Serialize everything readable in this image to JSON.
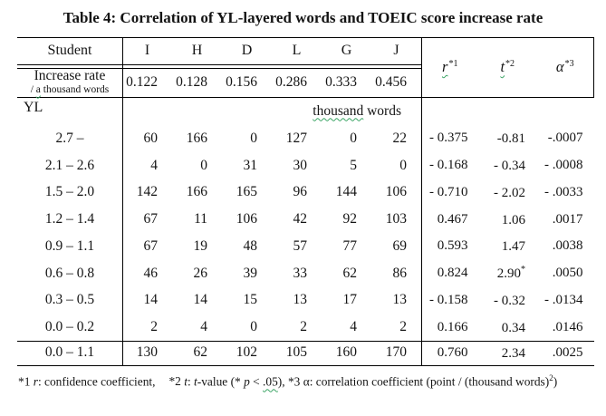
{
  "title": "Table 4: Correlation of YL-layered words and TOEIC score increase rate",
  "header": {
    "student_label": "Student",
    "students": [
      "I",
      "H",
      "D",
      "L",
      "G",
      "J"
    ],
    "increase_label": "Increase rate",
    "increase_sub_pre": "/ ",
    "increase_sub_squig": "a",
    "increase_sub_post": " thousand words",
    "increase_values": [
      "0.122",
      "0.128",
      "0.156",
      "0.286",
      "0.333",
      "0.456"
    ],
    "stats": [
      {
        "symbol": "r",
        "sup": "*1",
        "squiggle": true,
        "name": "stat-header-r"
      },
      {
        "symbol": "t",
        "sup": "*2",
        "squiggle": true,
        "name": "stat-header-t"
      },
      {
        "symbol": "α",
        "sup": "*3",
        "squiggle": false,
        "name": "stat-header-alpha"
      }
    ]
  },
  "yl": {
    "label": "YL",
    "unit_squig": "thousand",
    "unit_post": " words",
    "rows": [
      {
        "range": "2.7 –",
        "values": [
          "60",
          "166",
          "0",
          "127",
          "0",
          "22"
        ],
        "r": "- 0.375",
        "t": "-0.81",
        "t_sup": "",
        "a": "-.0007"
      },
      {
        "range": "2.1 – 2.6",
        "values": [
          "4",
          "0",
          "31",
          "30",
          "5",
          "0"
        ],
        "r": "- 0.168",
        "t": "- 0.34",
        "t_sup": "",
        "a": "- .0008"
      },
      {
        "range": "1.5 – 2.0",
        "values": [
          "142",
          "166",
          "165",
          "96",
          "144",
          "106"
        ],
        "r": "- 0.710",
        "t": "- 2.02",
        "t_sup": "",
        "a": "- .0033"
      },
      {
        "range": "1.2 – 1.4",
        "values": [
          "67",
          "11",
          "106",
          "42",
          "92",
          "103"
        ],
        "r": "0.467",
        "t": "1.06",
        "t_sup": "",
        "a": ".0017"
      },
      {
        "range": "0.9 – 1.1",
        "values": [
          "67",
          "19",
          "48",
          "57",
          "77",
          "69"
        ],
        "r": "0.593",
        "t": "1.47",
        "t_sup": "",
        "a": ".0038"
      },
      {
        "range": "0.6 – 0.8",
        "values": [
          "46",
          "26",
          "39",
          "33",
          "62",
          "86"
        ],
        "r": "0.824",
        "t": "2.90",
        "t_sup": "*",
        "a": ".0050"
      },
      {
        "range": "0.3 – 0.5",
        "values": [
          "14",
          "14",
          "15",
          "13",
          "17",
          "13"
        ],
        "r": "- 0.158",
        "t": "- 0.32",
        "t_sup": "",
        "a": "- .0134"
      },
      {
        "range": "0.0 – 0.2",
        "values": [
          "2",
          "4",
          "0",
          "2",
          "4",
          "2"
        ],
        "r": "0.166",
        "t": "0.34",
        "t_sup": "",
        "a": ".0146"
      }
    ],
    "summary": {
      "range": "0.0 – 1.1",
      "values": [
        "130",
        "62",
        "102",
        "105",
        "160",
        "170"
      ],
      "r": "0.760",
      "t": "2.34",
      "t_sup": "",
      "a": ".0025"
    }
  },
  "footnote": {
    "n1_star": "*1 ",
    "n1_sym": "r",
    "n1_rest": ": confidence coefficient,",
    "n2_star": "*2 ",
    "n2_sym": "t",
    "n2_colon": ": ",
    "n2_tword": "t",
    "n2_rest1": "-value (* ",
    "n2_p": "p",
    "n2_lt": " < ",
    "n2_squig": ".05",
    "n2_rest2": "),",
    "n3_star": " *3 ",
    "n3_sym": "α",
    "n3_rest": ": correlation coefficient (point / (thousand words)",
    "n3_sup": "2",
    "n3_close": ")"
  },
  "colors": {
    "squiggle_green": "#3aa464",
    "rule_black": "#000000",
    "text": "#141414"
  }
}
